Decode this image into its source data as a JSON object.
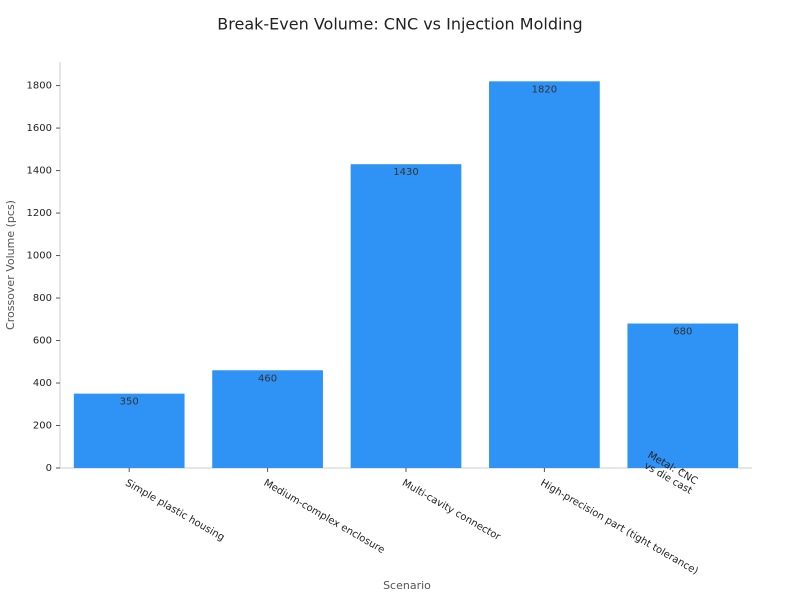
{
  "chart_data": {
    "type": "bar",
    "title": "Break-Even Volume: CNC vs Injection Molding",
    "x_label": "Scenario",
    "y_label": "Crossover Volume (pcs)",
    "categories": [
      "Simple plastic housing",
      "Medium-complex enclosure",
      "Multi-cavity connector",
      "High-precision part (tight tolerance)",
      "Metal: CNC\nvs die cast"
    ],
    "values": [
      350,
      460,
      1430,
      1820,
      680
    ],
    "color": "#2e93f5",
    "ylim": [
      0,
      1911
    ],
    "yticks": [
      0,
      200,
      400,
      600,
      800,
      1000,
      1200,
      1400,
      1600,
      1800
    ],
    "grid": false
  }
}
